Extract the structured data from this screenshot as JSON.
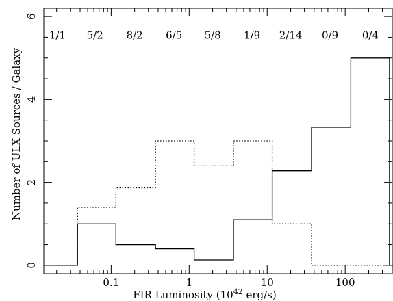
{
  "chart_data": {
    "type": "step",
    "xlabel_prefix": "FIR Luminosity (10",
    "xlabel_exponent": "42",
    "xlabel_suffix": " erg/s)",
    "ylabel": "Number of ULX Sources / Galaxy",
    "xscale": "log",
    "xlim": [
      0.0137,
      410
    ],
    "ylim": [
      -0.2,
      6.2
    ],
    "x_ticks": [
      {
        "value": 0.1,
        "label": "0.1"
      },
      {
        "value": 1,
        "label": "1"
      },
      {
        "value": 10,
        "label": "10"
      },
      {
        "value": 100,
        "label": "100"
      }
    ],
    "y_ticks": [
      {
        "value": 0,
        "label": "0"
      },
      {
        "value": 2,
        "label": "2"
      },
      {
        "value": 4,
        "label": "4"
      },
      {
        "value": 6,
        "label": "6"
      }
    ],
    "bin_edges": [
      0.0137,
      0.037,
      0.115,
      0.37,
      1.16,
      3.7,
      11.6,
      37,
      118,
      370,
      410
    ],
    "series": [
      {
        "style": "solid",
        "values": [
          0,
          1.0,
          0.5,
          0.4,
          0.13,
          1.1,
          2.28,
          3.33,
          5.0,
          0
        ]
      },
      {
        "style": "dotted",
        "values": [
          0,
          1.4,
          1.87,
          3.0,
          2.4,
          3.0,
          1.0,
          0,
          0,
          0
        ]
      }
    ],
    "bin_labels": [
      {
        "x": 0.0205,
        "text": "1/1"
      },
      {
        "x": 0.062,
        "text": "5/2"
      },
      {
        "x": 0.2,
        "text": "8/2"
      },
      {
        "x": 0.64,
        "text": "6/5"
      },
      {
        "x": 2.0,
        "text": "5/8"
      },
      {
        "x": 6.4,
        "text": "1/9"
      },
      {
        "x": 20,
        "text": "2/14"
      },
      {
        "x": 64,
        "text": "0/9"
      },
      {
        "x": 210,
        "text": "0/4"
      }
    ],
    "bin_label_y": 5.55,
    "grid": false
  }
}
